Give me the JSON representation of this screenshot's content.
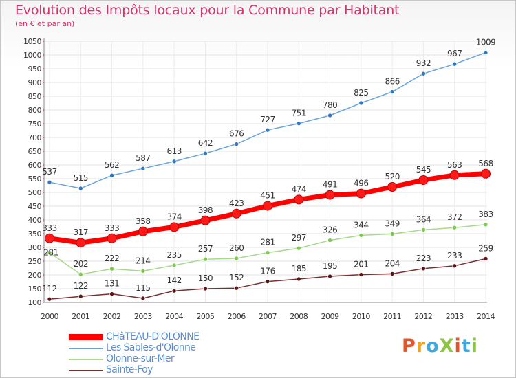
{
  "header": {
    "title": "Evolution des Impôts locaux pour la Commune par Habitant",
    "subtitle": "(en € et par an)"
  },
  "logo": {
    "text": "ProXiti",
    "colors": [
      "#e8542a",
      "#f2a11b",
      "#3fa9df",
      "#8cc63f",
      "#e8542a",
      "#3fa9df",
      "#8cc63f"
    ]
  },
  "chart_data": {
    "type": "line",
    "title": "Evolution des Impôts locaux pour la Commune par Habitant",
    "subtitle": "(en € et par an)",
    "xlabel": "",
    "ylabel": "",
    "x": [
      "2000",
      "2001",
      "2002",
      "2003",
      "2004",
      "2005",
      "2006",
      "2007",
      "2008",
      "2009",
      "2010",
      "2011",
      "2012",
      "2013",
      "2014"
    ],
    "ylim": [
      100,
      1050
    ],
    "yticks": [
      100,
      150,
      200,
      250,
      300,
      350,
      400,
      450,
      500,
      550,
      600,
      650,
      700,
      750,
      800,
      850,
      900,
      950,
      1000,
      1050
    ],
    "grid": true,
    "legend_position": "bottom-left",
    "series": [
      {
        "name": "CHâTEAU-D'OLONNE",
        "color": "#ff0000",
        "marker": "#e01010",
        "bold": true,
        "values": [
          333,
          317,
          333,
          358,
          374,
          398,
          423,
          451,
          474,
          491,
          496,
          520,
          545,
          563,
          568
        ]
      },
      {
        "name": "Les Sables-d'Olonne",
        "color": "#6aa3d8",
        "marker": "#2e78c2",
        "bold": false,
        "values": [
          537,
          515,
          562,
          587,
          613,
          642,
          676,
          727,
          751,
          780,
          825,
          866,
          932,
          967,
          1009
        ]
      },
      {
        "name": "Olonne-sur-Mer",
        "color": "#a7d98b",
        "marker": "#7ec850",
        "bold": false,
        "values": [
          281,
          202,
          222,
          214,
          235,
          257,
          260,
          281,
          297,
          326,
          344,
          349,
          364,
          372,
          383
        ]
      },
      {
        "name": "Sainte-Foy",
        "color": "#7a2f2f",
        "marker": "#5a1616",
        "bold": false,
        "values": [
          112,
          122,
          131,
          115,
          142,
          150,
          152,
          176,
          185,
          195,
          201,
          204,
          223,
          233,
          259
        ]
      }
    ]
  }
}
